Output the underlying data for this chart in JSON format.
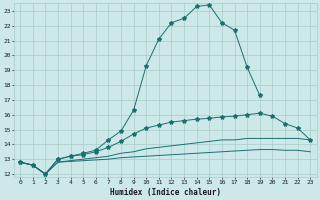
{
  "xlabel": "Humidex (Indice chaleur)",
  "background_color": "#cce8e8",
  "grid_color": "#aacccc",
  "line_color": "#1a7070",
  "xlim": [
    -0.5,
    23.5
  ],
  "ylim": [
    11.8,
    23.5
  ],
  "yticks": [
    12,
    13,
    14,
    15,
    16,
    17,
    18,
    19,
    20,
    21,
    22,
    23
  ],
  "xticks": [
    0,
    1,
    2,
    3,
    4,
    5,
    6,
    7,
    8,
    9,
    10,
    11,
    12,
    13,
    14,
    15,
    16,
    17,
    18,
    19,
    20,
    21,
    22,
    23
  ],
  "lines": [
    {
      "x": [
        0,
        1,
        2,
        3,
        4,
        5,
        6,
        7,
        8,
        9,
        10,
        11,
        12,
        13,
        14,
        15,
        16,
        17,
        18,
        19
      ],
      "y": [
        12.8,
        12.6,
        12.0,
        13.0,
        13.2,
        13.4,
        13.6,
        14.3,
        14.9,
        16.3,
        19.3,
        21.1,
        22.2,
        22.5,
        23.3,
        23.4,
        22.2,
        21.7,
        19.2,
        17.3
      ],
      "has_markers": true
    },
    {
      "x": [
        0,
        1,
        2,
        3,
        4,
        5,
        6,
        7,
        8,
        9,
        10,
        11,
        12,
        13,
        14,
        15,
        16,
        17,
        18,
        19,
        20,
        21,
        22,
        23
      ],
      "y": [
        12.8,
        12.6,
        12.0,
        13.0,
        13.2,
        13.3,
        13.5,
        13.8,
        14.2,
        14.7,
        15.1,
        15.3,
        15.5,
        15.6,
        15.7,
        15.75,
        15.85,
        15.9,
        16.0,
        16.1,
        15.9,
        15.4,
        15.1,
        14.3
      ],
      "has_markers": true
    },
    {
      "x": [
        0,
        1,
        2,
        3,
        4,
        5,
        6,
        7,
        8,
        9,
        10,
        11,
        12,
        13,
        14,
        15,
        16,
        17,
        18,
        19,
        20,
        21,
        22,
        23
      ],
      "y": [
        12.8,
        12.6,
        12.0,
        12.8,
        12.9,
        13.0,
        13.1,
        13.2,
        13.4,
        13.5,
        13.7,
        13.8,
        13.9,
        14.0,
        14.1,
        14.2,
        14.3,
        14.3,
        14.4,
        14.4,
        14.4,
        14.4,
        14.4,
        14.3
      ],
      "has_markers": false
    },
    {
      "x": [
        0,
        1,
        2,
        3,
        4,
        5,
        6,
        7,
        8,
        9,
        10,
        11,
        12,
        13,
        14,
        15,
        16,
        17,
        18,
        19,
        20,
        21,
        22,
        23
      ],
      "y": [
        12.8,
        12.6,
        12.0,
        12.8,
        12.85,
        12.9,
        12.95,
        13.0,
        13.1,
        13.15,
        13.2,
        13.25,
        13.3,
        13.35,
        13.4,
        13.45,
        13.5,
        13.55,
        13.6,
        13.65,
        13.65,
        13.6,
        13.6,
        13.5
      ],
      "has_markers": false
    }
  ]
}
